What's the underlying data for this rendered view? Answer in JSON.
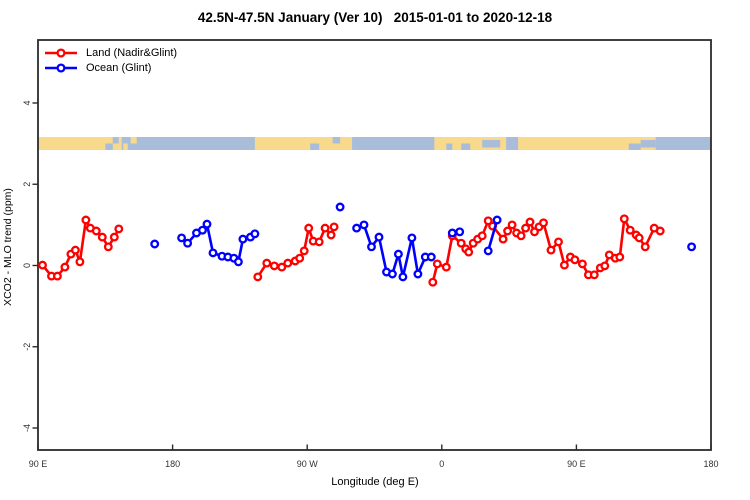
{
  "chart_data": {
    "type": "scatter",
    "title": "42.5N-47.5N January (Ver 10)   2015-01-01 to 2020-12-18",
    "xlabel": "Longitude (deg E)",
    "ylabel": "XCO2 - MLO trend (ppm)",
    "xlim": [
      90,
      540
    ],
    "ylim": [
      -4.6,
      5.5
    ],
    "grid": false,
    "legend_position": "top-left",
    "x_ticks": [
      {
        "lon": 90,
        "label": "90 E"
      },
      {
        "lon": 180,
        "label": "180"
      },
      {
        "lon": 270,
        "label": "90 W"
      },
      {
        "lon": 360,
        "label": "0"
      },
      {
        "lon": 450,
        "label": "90 E"
      },
      {
        "lon": 540,
        "label": "180"
      }
    ],
    "y_ticks": [
      {
        "value": 4,
        "label": "4"
      },
      {
        "value": 2,
        "label": "2"
      },
      {
        "value": 0,
        "label": "0"
      },
      {
        "value": -2,
        "label": "-2"
      },
      {
        "value": -4,
        "label": "-4"
      }
    ],
    "map_strip": {
      "value_center": 3,
      "ocean_segments": [
        {
          "from": 135,
          "to": 140,
          "part": "bottom"
        },
        {
          "from": 140,
          "to": 144,
          "part": "top"
        },
        {
          "from": 146,
          "to": 235,
          "part": "full"
        },
        {
          "from": 272,
          "to": 278,
          "part": "bottom"
        },
        {
          "from": 287,
          "to": 292,
          "part": "top"
        },
        {
          "from": 300,
          "to": 355,
          "part": "full"
        },
        {
          "from": 363,
          "to": 367,
          "part": "bottom"
        },
        {
          "from": 373,
          "to": 379,
          "part": "bottom"
        },
        {
          "from": 387,
          "to": 399,
          "part": "mid"
        },
        {
          "from": 403,
          "to": 411,
          "part": "full"
        },
        {
          "from": 485,
          "to": 493,
          "part": "bottom"
        },
        {
          "from": 493,
          "to": 503,
          "part": "mid"
        },
        {
          "from": 503,
          "to": 540,
          "part": "full"
        }
      ],
      "land_specks": [
        {
          "from": 147,
          "to": 150,
          "part": "bottom"
        },
        {
          "from": 152,
          "to": 156,
          "part": "top"
        },
        {
          "from": 294,
          "to": 298,
          "part": "top"
        }
      ]
    },
    "series": [
      {
        "name": "Land (Nadir&Glint)",
        "color": "#ff0000",
        "segments": [
          [
            [
              93,
              0.01
            ],
            [
              99,
              -0.26
            ],
            [
              103,
              -0.26
            ],
            [
              108,
              -0.04
            ],
            [
              112,
              0.28
            ],
            [
              115,
              0.38
            ],
            [
              118,
              0.09
            ],
            [
              122,
              1.12
            ],
            [
              125,
              0.92
            ],
            [
              129,
              0.85
            ],
            [
              133,
              0.7
            ],
            [
              137,
              0.46
            ],
            [
              141,
              0.7
            ],
            [
              144,
              0.9
            ]
          ],
          [
            [
              237,
              -0.28
            ],
            [
              243,
              0.06
            ],
            [
              248,
              -0.01
            ],
            [
              253,
              -0.04
            ],
            [
              257,
              0.06
            ],
            [
              262,
              0.11
            ],
            [
              265,
              0.18
            ],
            [
              268,
              0.36
            ],
            [
              271,
              0.92
            ],
            [
              274,
              0.6
            ],
            [
              278,
              0.58
            ],
            [
              282,
              0.92
            ],
            [
              286,
              0.75
            ],
            [
              288,
              0.95
            ]
          ],
          [
            [
              354,
              -0.41
            ],
            [
              357,
              0.04
            ],
            [
              363,
              -0.04
            ],
            [
              367,
              0.73
            ],
            [
              373,
              0.55
            ],
            [
              376,
              0.41
            ],
            [
              378,
              0.33
            ],
            [
              381,
              0.55
            ],
            [
              384,
              0.65
            ],
            [
              387,
              0.73
            ],
            [
              391,
              1.1
            ],
            [
              394,
              0.97
            ],
            [
              401,
              0.65
            ],
            [
              404,
              0.85
            ],
            [
              407,
              1.0
            ],
            [
              410,
              0.8
            ],
            [
              413,
              0.73
            ],
            [
              416,
              0.92
            ],
            [
              419,
              1.07
            ],
            [
              422,
              0.83
            ],
            [
              425,
              0.95
            ],
            [
              428,
              1.05
            ],
            [
              433,
              0.38
            ],
            [
              438,
              0.58
            ],
            [
              442,
              0.01
            ],
            [
              446,
              0.21
            ],
            [
              449,
              0.14
            ],
            [
              454,
              0.04
            ],
            [
              458,
              -0.23
            ],
            [
              462,
              -0.23
            ],
            [
              466,
              -0.06
            ],
            [
              469,
              -0.01
            ],
            [
              472,
              0.26
            ],
            [
              476,
              0.18
            ],
            [
              479,
              0.21
            ],
            [
              482,
              1.15
            ],
            [
              486,
              0.87
            ],
            [
              490,
              0.75
            ],
            [
              492,
              0.68
            ],
            [
              496,
              0.46
            ],
            [
              502,
              0.92
            ],
            [
              506,
              0.85
            ]
          ]
        ]
      },
      {
        "name": "Ocean (Glint)",
        "color": "#0000ff",
        "segments": [
          [
            [
              168,
              0.53
            ]
          ],
          [
            [
              186,
              0.68
            ],
            [
              190,
              0.55
            ],
            [
              196,
              0.8
            ],
            [
              200,
              0.87
            ],
            [
              203,
              1.02
            ],
            [
              207,
              0.31
            ],
            [
              213,
              0.23
            ],
            [
              217,
              0.21
            ],
            [
              221,
              0.18
            ],
            [
              224,
              0.09
            ],
            [
              227,
              0.65
            ],
            [
              232,
              0.7
            ],
            [
              235,
              0.78
            ]
          ],
          [
            [
              292,
              1.44
            ]
          ],
          [
            [
              303,
              0.92
            ],
            [
              308,
              1.0
            ],
            [
              313,
              0.46
            ],
            [
              318,
              0.7
            ],
            [
              323,
              -0.16
            ],
            [
              327,
              -0.21
            ],
            [
              331,
              0.28
            ],
            [
              334,
              -0.28
            ],
            [
              340,
              0.68
            ],
            [
              344,
              -0.21
            ],
            [
              349,
              0.21
            ],
            [
              353,
              0.21
            ]
          ],
          [
            [
              367,
              0.8
            ],
            [
              372,
              0.83
            ]
          ],
          [
            [
              391,
              0.36
            ],
            [
              397,
              1.12
            ]
          ],
          [
            [
              527,
              0.46
            ]
          ]
        ]
      }
    ]
  },
  "colors": {
    "map_land": "#f9d98c",
    "map_ocean": "#a9bdda",
    "axis": "#2b2b2b",
    "tick_text": "#333333"
  }
}
